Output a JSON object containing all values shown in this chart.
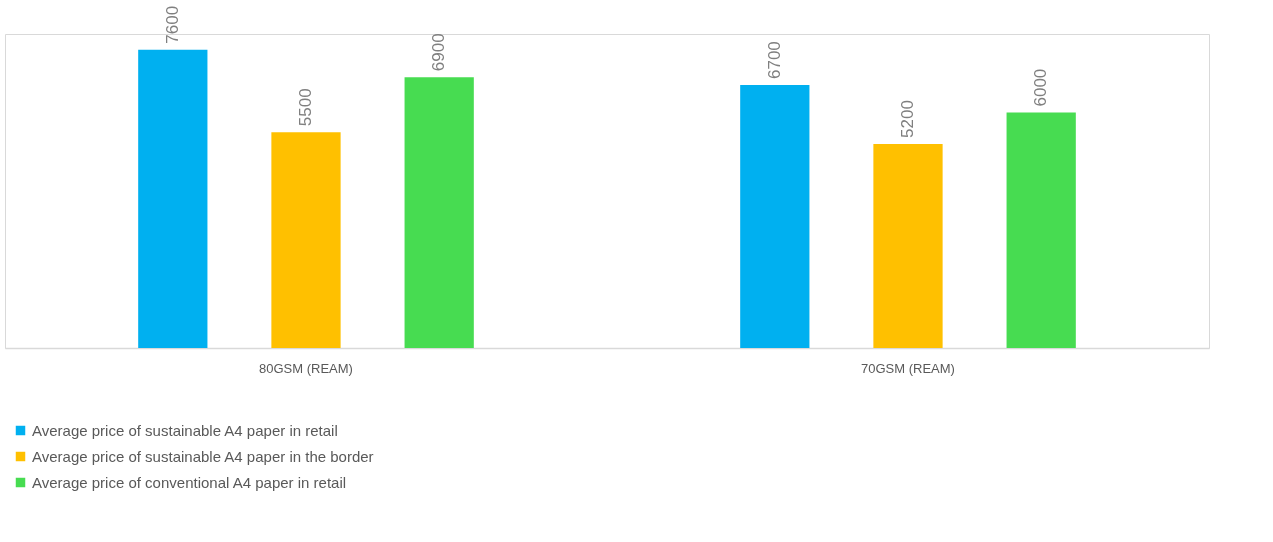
{
  "chart_data": {
    "type": "bar",
    "categories": [
      "80GSM (REAM)",
      "70GSM (REAM)"
    ],
    "series": [
      {
        "name": "Average price of sustainable A4 paper in retail",
        "color": "#00b0f0",
        "values": [
          7600,
          6700
        ]
      },
      {
        "name": "Average price of sustainable A4 paper in the border",
        "color": "#ffc000",
        "values": [
          5500,
          5200
        ]
      },
      {
        "name": "Average price of conventional A4 paper in retail",
        "color": "#47dc51",
        "values": [
          6900,
          6000
        ]
      }
    ],
    "ylim": [
      0,
      8000
    ],
    "data_labels": true,
    "legend": "bottom",
    "grid": false
  }
}
